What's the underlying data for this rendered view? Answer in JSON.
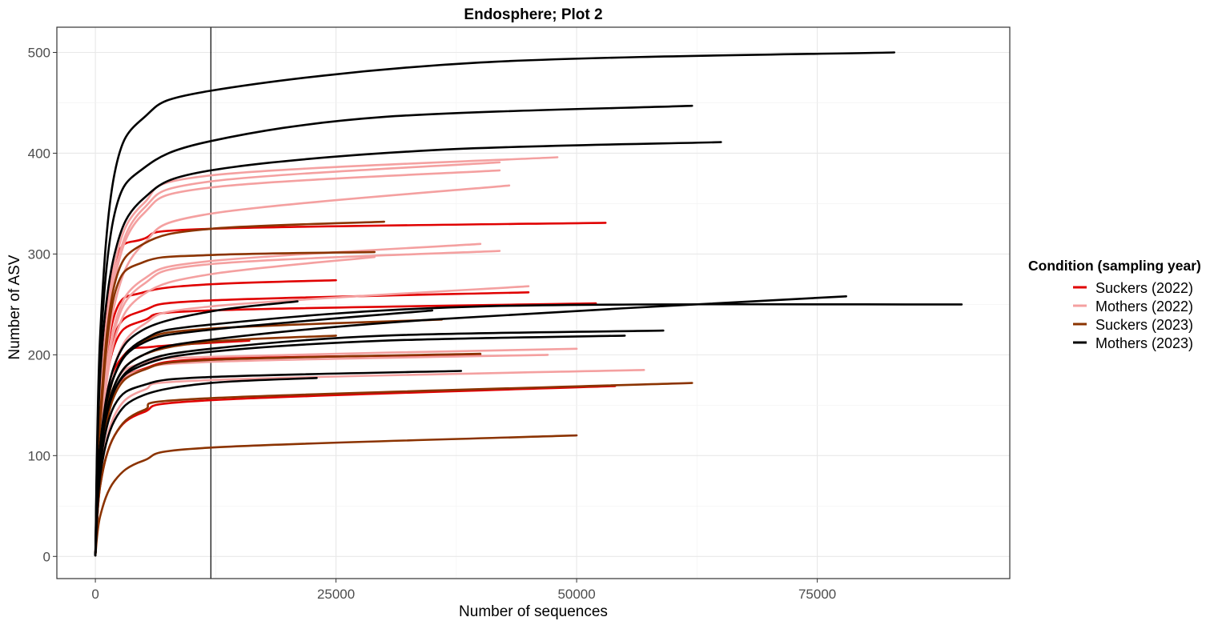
{
  "chart_data": {
    "type": "line",
    "title": "Endosphere; Plot 2",
    "xlabel": "Number of sequences",
    "ylabel": "Number of ASV",
    "xlim": [
      -4000,
      95000
    ],
    "ylim": [
      -22,
      525
    ],
    "xticks": [
      0,
      25000,
      50000,
      75000
    ],
    "xtick_labels": [
      "0",
      "25000",
      "50000",
      "75000"
    ],
    "yticks": [
      0,
      100,
      200,
      300,
      400,
      500
    ],
    "ytick_labels": [
      "0",
      "100",
      "200",
      "300",
      "400",
      "500"
    ],
    "grid": true,
    "vline_x": 12000,
    "legend": {
      "title": "Condition (sampling year)",
      "placement": "right",
      "entries": [
        {
          "label": "Suckers (2022)",
          "color": "#e00000"
        },
        {
          "label": "Mothers (2022)",
          "color": "#f4a0a0"
        },
        {
          "label": "Suckers (2023)",
          "color": "#8b3300"
        },
        {
          "label": "Mothers (2023)",
          "color": "#000000"
        }
      ]
    },
    "series": [
      {
        "group": 0,
        "points": [
          [
            0,
            1
          ],
          [
            500,
            150
          ],
          [
            2000,
            290
          ],
          [
            5000,
            315
          ],
          [
            12000,
            325
          ],
          [
            53000,
            331
          ]
        ]
      },
      {
        "group": 0,
        "points": [
          [
            0,
            1
          ],
          [
            500,
            130
          ],
          [
            2000,
            240
          ],
          [
            5000,
            262
          ],
          [
            12000,
            270
          ],
          [
            25000,
            274
          ]
        ]
      },
      {
        "group": 0,
        "points": [
          [
            0,
            1
          ],
          [
            500,
            130
          ],
          [
            2000,
            220
          ],
          [
            5000,
            244
          ],
          [
            12000,
            254
          ],
          [
            45000,
            262
          ]
        ]
      },
      {
        "group": 0,
        "points": [
          [
            0,
            1
          ],
          [
            500,
            120
          ],
          [
            2000,
            210
          ],
          [
            5000,
            234
          ],
          [
            12000,
            244
          ],
          [
            52000,
            251
          ]
        ]
      },
      {
        "group": 0,
        "points": [
          [
            0,
            1
          ],
          [
            1000,
            150
          ],
          [
            3000,
            200
          ],
          [
            6000,
            208
          ],
          [
            16000,
            214
          ]
        ]
      },
      {
        "group": 0,
        "points": [
          [
            0,
            1
          ],
          [
            500,
            100
          ],
          [
            2000,
            165
          ],
          [
            5000,
            186
          ],
          [
            12000,
            196
          ],
          [
            40000,
            200
          ]
        ]
      },
      {
        "group": 0,
        "points": [
          [
            0,
            1
          ],
          [
            500,
            70
          ],
          [
            2000,
            120
          ],
          [
            5000,
            143
          ],
          [
            12000,
            155
          ],
          [
            54000,
            169
          ]
        ]
      },
      {
        "group": 1,
        "points": [
          [
            0,
            1
          ],
          [
            500,
            150
          ],
          [
            2000,
            290
          ],
          [
            5000,
            350
          ],
          [
            12000,
            378
          ],
          [
            48000,
            396
          ]
        ]
      },
      {
        "group": 1,
        "points": [
          [
            0,
            1
          ],
          [
            500,
            150
          ],
          [
            2000,
            280
          ],
          [
            5000,
            345
          ],
          [
            12000,
            372
          ],
          [
            42000,
            391
          ]
        ]
      },
      {
        "group": 1,
        "points": [
          [
            0,
            1
          ],
          [
            500,
            145
          ],
          [
            2000,
            275
          ],
          [
            5000,
            340
          ],
          [
            12000,
            366
          ],
          [
            42000,
            383
          ]
        ]
      },
      {
        "group": 1,
        "points": [
          [
            0,
            1
          ],
          [
            500,
            130
          ],
          [
            2000,
            250
          ],
          [
            5000,
            310
          ],
          [
            12000,
            340
          ],
          [
            43000,
            368
          ]
        ]
      },
      {
        "group": 1,
        "points": [
          [
            0,
            1
          ],
          [
            500,
            120
          ],
          [
            2000,
            230
          ],
          [
            5000,
            275
          ],
          [
            12000,
            293
          ],
          [
            40000,
            310
          ]
        ]
      },
      {
        "group": 1,
        "points": [
          [
            0,
            1
          ],
          [
            500,
            120
          ],
          [
            2000,
            225
          ],
          [
            5000,
            270
          ],
          [
            12000,
            290
          ],
          [
            42000,
            303
          ]
        ]
      },
      {
        "group": 1,
        "points": [
          [
            0,
            1
          ],
          [
            500,
            110
          ],
          [
            2000,
            215
          ],
          [
            5000,
            260
          ],
          [
            12000,
            280
          ],
          [
            29000,
            297
          ]
        ]
      },
      {
        "group": 1,
        "points": [
          [
            0,
            1
          ],
          [
            500,
            100
          ],
          [
            2000,
            190
          ],
          [
            5000,
            230
          ],
          [
            12000,
            248
          ],
          [
            45000,
            268
          ]
        ]
      },
      {
        "group": 1,
        "points": [
          [
            0,
            1
          ],
          [
            500,
            90
          ],
          [
            2000,
            170
          ],
          [
            5000,
            192
          ],
          [
            12000,
            198
          ],
          [
            50000,
            206
          ]
        ]
      },
      {
        "group": 1,
        "points": [
          [
            0,
            1
          ],
          [
            500,
            90
          ],
          [
            2000,
            165
          ],
          [
            5000,
            185
          ],
          [
            12000,
            193
          ],
          [
            47000,
            200
          ]
        ]
      },
      {
        "group": 1,
        "points": [
          [
            0,
            1
          ],
          [
            500,
            80
          ],
          [
            2000,
            140
          ],
          [
            5000,
            165
          ],
          [
            12000,
            175
          ],
          [
            57000,
            185
          ]
        ]
      },
      {
        "group": 2,
        "points": [
          [
            0,
            1
          ],
          [
            500,
            140
          ],
          [
            2000,
            270
          ],
          [
            5000,
            310
          ],
          [
            12000,
            325
          ],
          [
            30000,
            332
          ]
        ]
      },
      {
        "group": 2,
        "points": [
          [
            0,
            1
          ],
          [
            500,
            130
          ],
          [
            2000,
            260
          ],
          [
            5000,
            292
          ],
          [
            12000,
            299
          ],
          [
            29000,
            302
          ]
        ]
      },
      {
        "group": 2,
        "points": [
          [
            0,
            1
          ],
          [
            500,
            100
          ],
          [
            2000,
            180
          ],
          [
            5000,
            214
          ],
          [
            12000,
            226
          ],
          [
            36000,
            235
          ]
        ]
      },
      {
        "group": 2,
        "points": [
          [
            0,
            1
          ],
          [
            500,
            100
          ],
          [
            2000,
            170
          ],
          [
            5000,
            200
          ],
          [
            12000,
            213
          ],
          [
            25000,
            219
          ]
        ]
      },
      {
        "group": 2,
        "points": [
          [
            0,
            1
          ],
          [
            500,
            90
          ],
          [
            2000,
            160
          ],
          [
            5000,
            185
          ],
          [
            12000,
            195
          ],
          [
            40000,
            201
          ]
        ]
      },
      {
        "group": 2,
        "points": [
          [
            0,
            1
          ],
          [
            500,
            70
          ],
          [
            2000,
            120
          ],
          [
            5000,
            145
          ],
          [
            12000,
            157
          ],
          [
            62000,
            172
          ]
        ]
      },
      {
        "group": 2,
        "points": [
          [
            0,
            1
          ],
          [
            500,
            40
          ],
          [
            2000,
            75
          ],
          [
            5000,
            95
          ],
          [
            12000,
            108
          ],
          [
            50000,
            120
          ]
        ]
      },
      {
        "group": 3,
        "points": [
          [
            0,
            1
          ],
          [
            500,
            220
          ],
          [
            2000,
            380
          ],
          [
            5000,
            435
          ],
          [
            12000,
            462
          ],
          [
            40000,
            490
          ],
          [
            83000,
            500
          ]
        ]
      },
      {
        "group": 3,
        "points": [
          [
            0,
            1
          ],
          [
            500,
            200
          ],
          [
            2000,
            340
          ],
          [
            5000,
            385
          ],
          [
            12000,
            412
          ],
          [
            30000,
            436
          ],
          [
            62000,
            447
          ]
        ]
      },
      {
        "group": 3,
        "points": [
          [
            0,
            1
          ],
          [
            500,
            180
          ],
          [
            2000,
            300
          ],
          [
            5000,
            355
          ],
          [
            12000,
            383
          ],
          [
            35000,
            403
          ],
          [
            65000,
            411
          ]
        ]
      },
      {
        "group": 3,
        "points": [
          [
            0,
            1
          ],
          [
            500,
            110
          ],
          [
            2000,
            180
          ],
          [
            5000,
            215
          ],
          [
            12000,
            230
          ],
          [
            40000,
            248
          ],
          [
            90000,
            250
          ]
        ]
      },
      {
        "group": 3,
        "points": [
          [
            0,
            1
          ],
          [
            500,
            100
          ],
          [
            2000,
            170
          ],
          [
            5000,
            200
          ],
          [
            12000,
            215
          ],
          [
            35000,
            235
          ],
          [
            78000,
            258
          ]
        ]
      },
      {
        "group": 3,
        "points": [
          [
            0,
            1
          ],
          [
            500,
            110
          ],
          [
            2000,
            180
          ],
          [
            5000,
            212
          ],
          [
            12000,
            225
          ],
          [
            35000,
            244
          ]
        ]
      },
      {
        "group": 3,
        "points": [
          [
            0,
            1
          ],
          [
            500,
            110
          ],
          [
            2000,
            190
          ],
          [
            5000,
            225
          ],
          [
            12000,
            243
          ],
          [
            21000,
            253
          ]
        ]
      },
      {
        "group": 3,
        "points": [
          [
            0,
            1
          ],
          [
            500,
            100
          ],
          [
            2000,
            165
          ],
          [
            5000,
            193
          ],
          [
            12000,
            206
          ],
          [
            30000,
            219
          ],
          [
            59000,
            224
          ]
        ]
      },
      {
        "group": 3,
        "points": [
          [
            0,
            1
          ],
          [
            500,
            100
          ],
          [
            2000,
            165
          ],
          [
            5000,
            190
          ],
          [
            12000,
            203
          ],
          [
            30000,
            214
          ],
          [
            55000,
            219
          ]
        ]
      },
      {
        "group": 3,
        "points": [
          [
            0,
            1
          ],
          [
            500,
            90
          ],
          [
            2000,
            150
          ],
          [
            5000,
            170
          ],
          [
            12000,
            178
          ],
          [
            38000,
            184
          ]
        ]
      },
      {
        "group": 3,
        "points": [
          [
            0,
            1
          ],
          [
            500,
            80
          ],
          [
            2000,
            135
          ],
          [
            5000,
            160
          ],
          [
            12000,
            172
          ],
          [
            23000,
            177
          ]
        ]
      }
    ]
  }
}
